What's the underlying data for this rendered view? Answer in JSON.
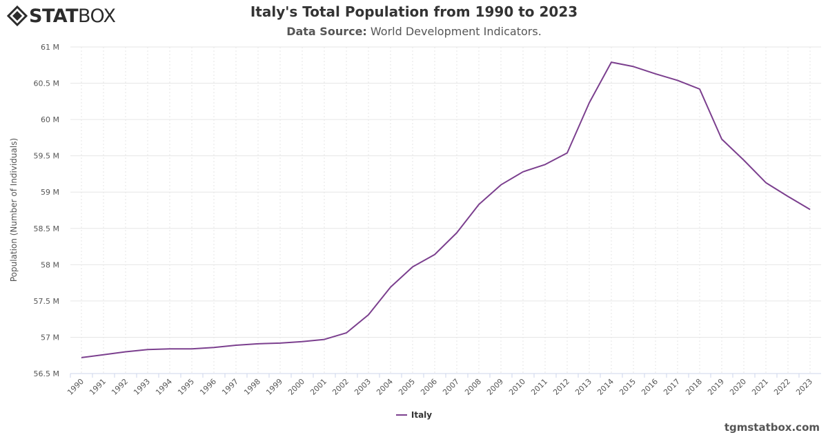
{
  "brand": {
    "bold": "STAT",
    "light": "BOX",
    "icon": "statbox-logo-icon"
  },
  "title": "Italy's Total Population from 1990 to 2023",
  "subtitle": {
    "label": "Data Source:",
    "value": "World Development Indicators."
  },
  "credit": "tgmstatbox.com",
  "colors": {
    "series": "#7b3f8e",
    "grid": "#e6e6e6",
    "axis": "#ccd6eb"
  },
  "chart_data": {
    "type": "line",
    "title": "Italy's Total Population from 1990 to 2023",
    "ylabel": "Population (Number of Individuals)",
    "xlabel": "",
    "ylim": [
      56.5,
      61
    ],
    "y_unit": "M",
    "y_ticks": [
      "56.5 M",
      "57 M",
      "57.5 M",
      "58 M",
      "58.5 M",
      "59 M",
      "59.5 M",
      "60 M",
      "60.5 M",
      "61 M"
    ],
    "y_tick_values": [
      56.5,
      57,
      57.5,
      58,
      58.5,
      59,
      59.5,
      60,
      60.5,
      61
    ],
    "categories": [
      "1990",
      "1991",
      "1992",
      "1993",
      "1994",
      "1995",
      "1996",
      "1997",
      "1998",
      "1999",
      "2000",
      "2001",
      "2002",
      "2003",
      "2004",
      "2005",
      "2006",
      "2007",
      "2008",
      "2009",
      "2010",
      "2011",
      "2012",
      "2013",
      "2014",
      "2015",
      "2016",
      "2017",
      "2018",
      "2019",
      "2020",
      "2021",
      "2022",
      "2023"
    ],
    "grid": true,
    "legend": "bottom-center",
    "series": [
      {
        "name": "Italy",
        "values": [
          56.72,
          56.76,
          56.8,
          56.83,
          56.84,
          56.84,
          56.86,
          56.89,
          56.91,
          56.92,
          56.94,
          56.97,
          57.06,
          57.31,
          57.69,
          57.97,
          58.14,
          58.44,
          58.83,
          59.1,
          59.28,
          59.38,
          59.54,
          60.23,
          60.79,
          60.73,
          60.63,
          60.54,
          60.42,
          59.73,
          59.44,
          59.13,
          58.94,
          58.76
        ]
      }
    ]
  }
}
